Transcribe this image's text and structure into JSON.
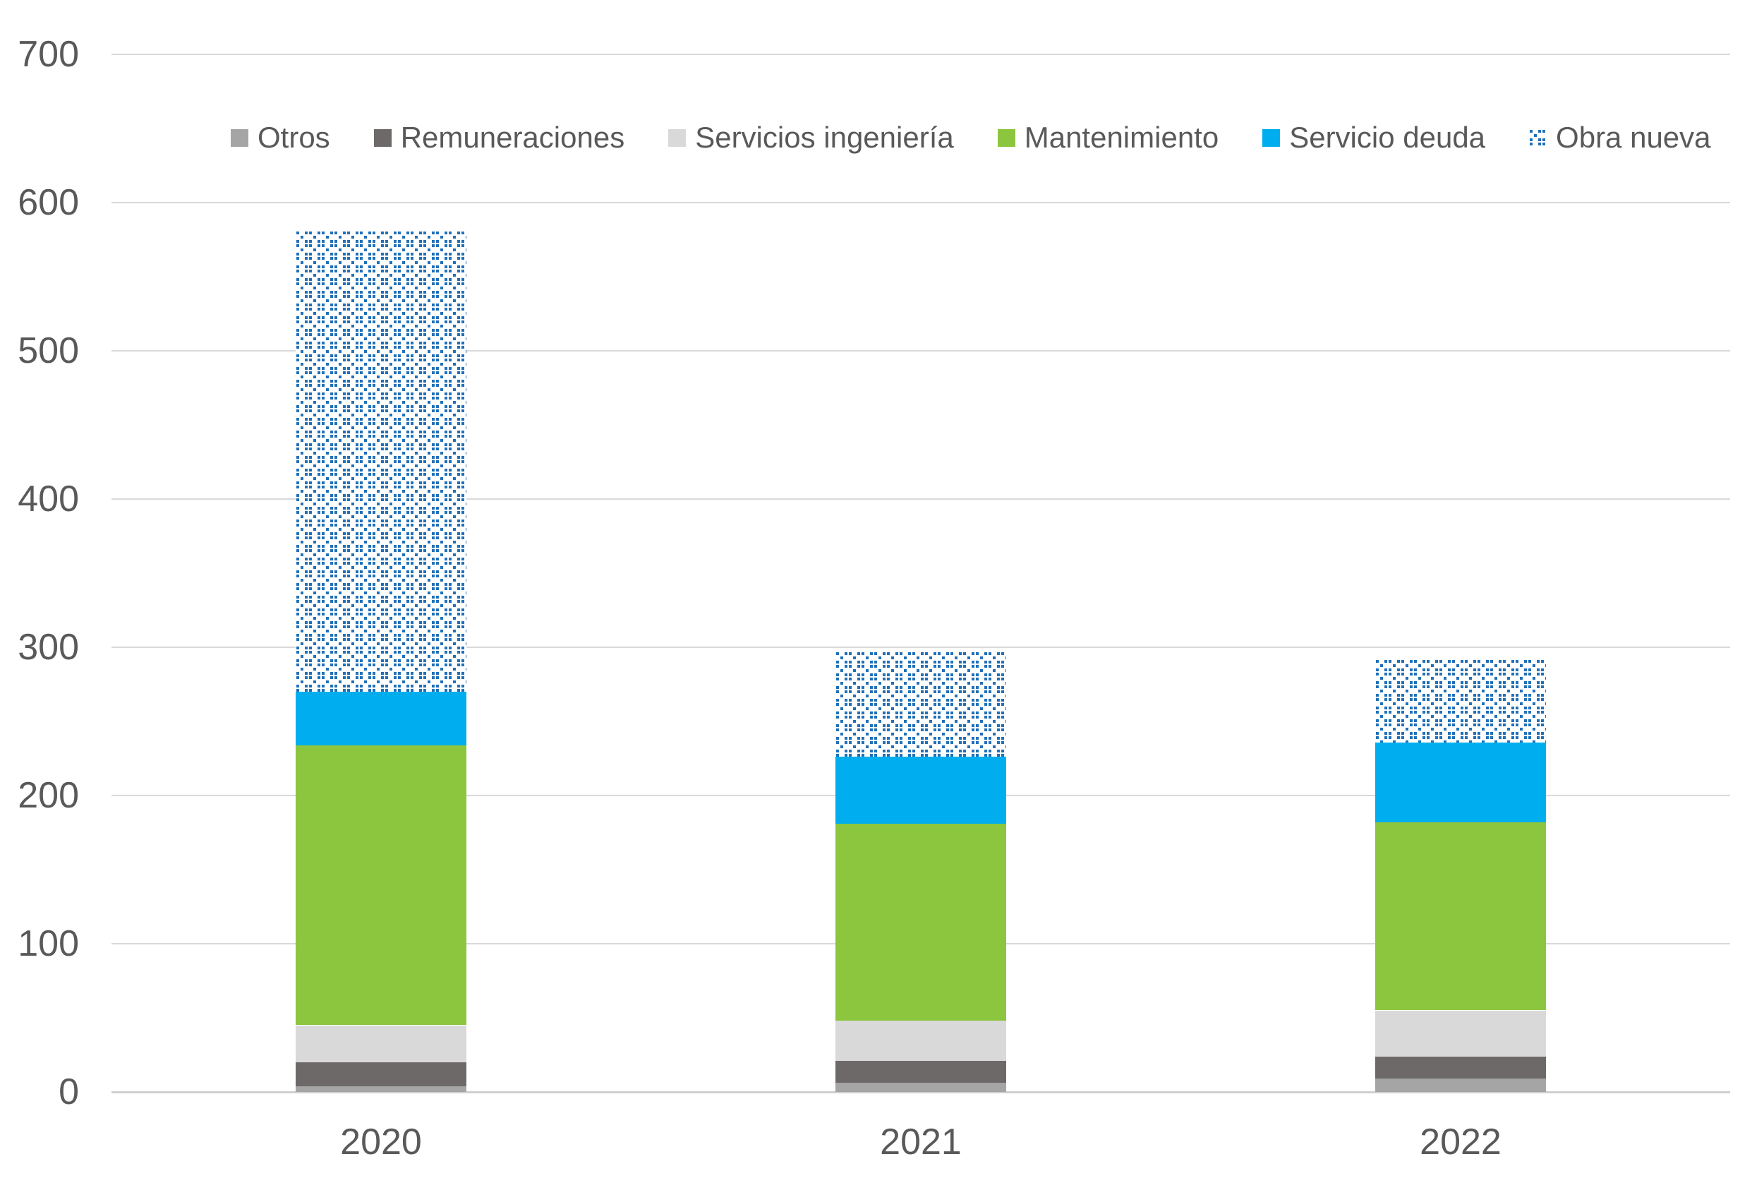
{
  "chart_data": {
    "type": "bar",
    "stacked": true,
    "title": "",
    "xlabel": "",
    "ylabel": "",
    "categories": [
      "2020",
      "2021",
      "2022"
    ],
    "series": [
      {
        "name": "Otros",
        "color": "#A5A5A5",
        "pattern": "solid",
        "values": [
          4,
          6,
          9
        ]
      },
      {
        "name": "Remuneraciones",
        "color": "#6E6969",
        "pattern": "solid",
        "values": [
          16,
          15,
          15
        ]
      },
      {
        "name": "Servicios ingeniería",
        "color": "#D9D9D9",
        "pattern": "solid",
        "values": [
          25,
          27,
          31
        ]
      },
      {
        "name": "Mantenimiento",
        "color": "#8BC63E",
        "pattern": "solid",
        "values": [
          189,
          133,
          127
        ]
      },
      {
        "name": "Servicio deuda",
        "color": "#00AEEF",
        "pattern": "solid",
        "values": [
          36,
          45,
          54
        ]
      },
      {
        "name": "Obra nueva",
        "color": "#2170B8",
        "pattern": "dotted-diamond",
        "values": [
          311,
          71,
          56
        ]
      }
    ],
    "totals": [
      581,
      297,
      292
    ],
    "yticks": [
      0,
      100,
      200,
      300,
      400,
      500,
      600,
      700
    ],
    "ylim": [
      0,
      700
    ],
    "grid": true,
    "legend_position": "top",
    "colors": {
      "axis_text": "#595959",
      "gridline": "#D9D9D9",
      "axis_line": "#CFCFCF",
      "background": "#FFFFFF",
      "pattern_background": "#FFFFFF"
    }
  }
}
